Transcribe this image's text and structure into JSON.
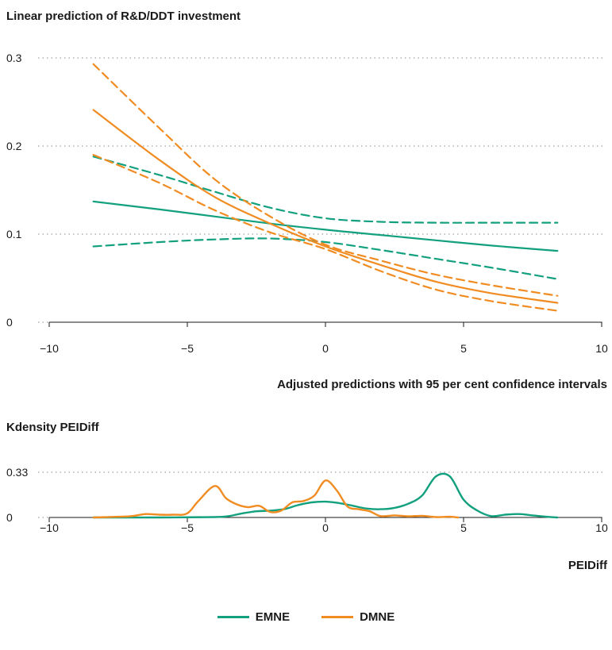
{
  "colors": {
    "EMNE": "#12a07e",
    "DMNE": "#f08c22",
    "grid": "#8a8a8a"
  },
  "chart_data": [
    {
      "type": "line",
      "title": "Linear prediction of R&D/DDT investment",
      "xlabel": "Adjusted predictions with 95 per cent confidence intervals",
      "ylabel": "",
      "xlim": [
        -10,
        10
      ],
      "ylim": [
        0,
        0.3
      ],
      "xticks": [
        -10,
        -5,
        0,
        5,
        10
      ],
      "xtick_labels": [
        "−10",
        "−5",
        "0",
        "5",
        "10"
      ],
      "yticks": [
        0,
        0.1,
        0.2,
        0.3
      ],
      "ytick_labels": [
        "0",
        "0.1",
        "0.2",
        "0.3"
      ],
      "grid": "horizontal dotted",
      "x": [
        -8.4,
        -6,
        -4,
        -2,
        0,
        2,
        4,
        6,
        8.4
      ],
      "series": [
        {
          "name": "EMNE",
          "role": "prediction",
          "dash": false,
          "values": [
            0.137,
            0.128,
            0.12,
            0.112,
            0.105,
            0.099,
            0.093,
            0.087,
            0.081
          ]
        },
        {
          "name": "EMNE",
          "role": "upper CI",
          "dash": true,
          "values": [
            0.188,
            0.167,
            0.148,
            0.13,
            0.118,
            0.114,
            0.113,
            0.113,
            0.113
          ]
        },
        {
          "name": "EMNE",
          "role": "lower CI",
          "dash": true,
          "values": [
            0.086,
            0.091,
            0.094,
            0.095,
            0.091,
            0.082,
            0.072,
            0.062,
            0.049
          ]
        },
        {
          "name": "DMNE",
          "role": "prediction",
          "dash": false,
          "values": [
            0.241,
            0.184,
            0.142,
            0.112,
            0.086,
            0.065,
            0.046,
            0.033,
            0.022
          ]
        },
        {
          "name": "DMNE",
          "role": "upper CI",
          "dash": true,
          "values": [
            0.293,
            0.22,
            0.162,
            0.12,
            0.088,
            0.07,
            0.054,
            0.042,
            0.03
          ]
        },
        {
          "name": "DMNE",
          "role": "lower CI",
          "dash": true,
          "values": [
            0.19,
            0.158,
            0.127,
            0.102,
            0.083,
            0.058,
            0.037,
            0.024,
            0.013
          ]
        }
      ]
    },
    {
      "type": "line",
      "title": "Kdensity PEIDiff",
      "xlabel": "PEIDiff",
      "ylabel": "",
      "xlim": [
        -10,
        10
      ],
      "ylim": [
        0,
        0.33
      ],
      "xticks": [
        -10,
        -5,
        0,
        5,
        10
      ],
      "xtick_labels": [
        "−10",
        "−5",
        "0",
        "5",
        "10"
      ],
      "yticks": [
        0,
        0.33
      ],
      "ytick_labels": [
        "0",
        "0.33"
      ],
      "grid": "horizontal dotted",
      "series": [
        {
          "name": "EMNE",
          "x": [
            -8.4,
            -6,
            -4,
            -3.5,
            -3,
            -2.5,
            -2,
            -1.5,
            -1,
            -0.5,
            0,
            0.5,
            1,
            1.5,
            2,
            2.5,
            3,
            3.5,
            4,
            4.5,
            5,
            5.5,
            6,
            6.5,
            7,
            7.5,
            8,
            8.4
          ],
          "values": [
            0,
            0,
            0.003,
            0.01,
            0.03,
            0.045,
            0.05,
            0.06,
            0.09,
            0.11,
            0.115,
            0.105,
            0.085,
            0.065,
            0.06,
            0.07,
            0.1,
            0.16,
            0.3,
            0.3,
            0.13,
            0.05,
            0.01,
            0.02,
            0.025,
            0.015,
            0.005,
            0
          ]
        },
        {
          "name": "DMNE",
          "x": [
            -8.4,
            -7.5,
            -7,
            -6.5,
            -6,
            -5.5,
            -5,
            -4.6,
            -4,
            -3.6,
            -3.2,
            -2.8,
            -2.4,
            -2,
            -1.6,
            -1.2,
            -0.8,
            -0.4,
            0,
            0.4,
            0.8,
            1.2,
            1.6,
            2,
            2.5,
            3,
            3.5,
            4,
            4.5,
            4.8
          ],
          "values": [
            0,
            0.005,
            0.01,
            0.025,
            0.02,
            0.02,
            0.03,
            0.12,
            0.23,
            0.14,
            0.095,
            0.075,
            0.085,
            0.04,
            0.05,
            0.11,
            0.12,
            0.16,
            0.27,
            0.2,
            0.08,
            0.06,
            0.045,
            0.01,
            0.015,
            0.008,
            0.012,
            0.003,
            0.005,
            0
          ]
        }
      ]
    }
  ],
  "legend": [
    {
      "name": "EMNE",
      "color": "#12a07e"
    },
    {
      "name": "DMNE",
      "color": "#f08c22"
    }
  ]
}
